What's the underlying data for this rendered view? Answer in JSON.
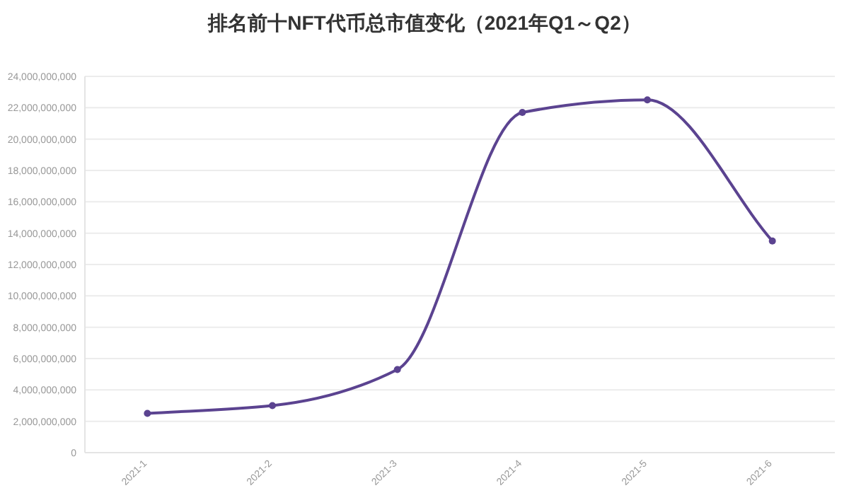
{
  "chart_data": {
    "type": "line",
    "title": "排名前十NFT代币总市值变化（2021年Q1～Q2）",
    "categories": [
      "2021-1",
      "2021-2",
      "2021-3",
      "2021-4",
      "2021-5",
      "2021-6"
    ],
    "series": [
      {
        "color": "#5b4390",
        "values": [
          2500000000,
          3000000000,
          5300000000,
          21700000000,
          22500000000,
          13500000000
        ]
      }
    ],
    "ylim": [
      0,
      24000000000
    ],
    "yticks": [
      0,
      {
        "value": 2000000000,
        "label": "2,000,000,000"
      },
      {
        "value": 4000000000,
        "label": "4,000,000,000"
      },
      {
        "value": 6000000000,
        "label": "6,000,000,000"
      },
      {
        "value": 8000000000,
        "label": "8,000,000,000"
      },
      {
        "value": 10000000000,
        "label": "10,000,000,000"
      },
      {
        "value": 12000000000,
        "label": "12,000,000,000"
      },
      {
        "value": 14000000000,
        "label": "14,000,000,000"
      },
      {
        "value": 16000000000,
        "label": "16,000,000,000"
      },
      {
        "value": 18000000000,
        "label": "18,000,000,000"
      },
      {
        "value": 20000000000,
        "label": "20,000,000,000"
      },
      {
        "value": 22000000000,
        "label": "22,000,000,000"
      },
      {
        "value": 24000000000,
        "label": "24,000,000,000"
      }
    ],
    "grid": "y",
    "marker": "circle",
    "line_style": "solid"
  }
}
